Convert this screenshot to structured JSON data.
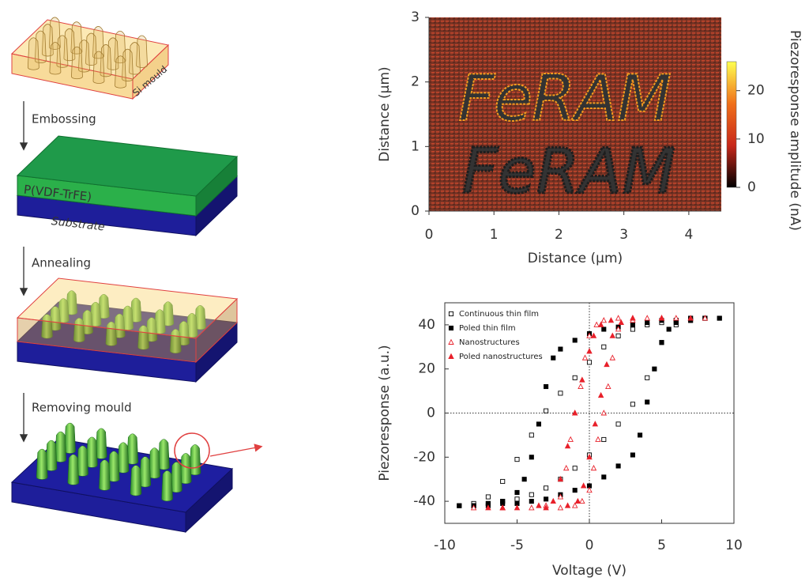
{
  "diagram": {
    "mould_label": "Si mould",
    "steps": [
      "Embossing",
      "Annealing",
      "Removing mould"
    ],
    "layers": [
      "P(VDF-TrFE)",
      "Substrate"
    ]
  },
  "chart_data": [
    {
      "type": "heatmap",
      "xlabel": "Distance (μm)",
      "ylabel": "Distance (μm)",
      "xlim": [
        0,
        4.5
      ],
      "xticks": [
        0,
        1,
        2,
        3,
        4
      ],
      "ylim": [
        0,
        3
      ],
      "yticks": [
        0,
        1,
        2,
        3
      ],
      "annotations": [
        {
          "text": "FeRAM",
          "color": "#f29a1e"
        },
        {
          "text": "FeRAM",
          "color": "#1e1e1e"
        }
      ],
      "colorbar": {
        "label": "Piezoresponse amplitude (nA)",
        "lim": [
          0,
          26
        ],
        "ticks": [
          0,
          10,
          20
        ],
        "colormap": [
          "#000000",
          "#c8281a",
          "#f0701a",
          "#ffff50"
        ]
      }
    },
    {
      "type": "scatter",
      "xlabel": "Voltage (V)",
      "ylabel": "Piezoresponse (a.u.)",
      "xlim": [
        -10,
        10
      ],
      "xticks": [
        -10,
        -5,
        0,
        5,
        10
      ],
      "ylim": [
        -50,
        50
      ],
      "yticks": [
        -40,
        -20,
        0,
        20,
        40
      ],
      "zero_lines": true,
      "legend": "upper left",
      "series": [
        {
          "name": "Continuous thin film",
          "color": "#000000",
          "marker": "open-square",
          "x": [
            -9,
            -8,
            -7,
            -6,
            -5,
            -4,
            -3,
            -2,
            -1,
            0,
            1,
            2,
            3,
            4,
            5,
            6,
            7,
            8,
            9,
            8,
            7,
            6,
            5,
            4,
            3,
            2,
            1,
            0,
            -1,
            -2,
            -3,
            -4,
            -5,
            -6,
            -7,
            -8
          ],
          "values": [
            -42,
            -42,
            -41,
            -40,
            -39,
            -37,
            -34,
            -30,
            -25,
            -19,
            -12,
            -5,
            4,
            16,
            32,
            40,
            42,
            43,
            43,
            43,
            43,
            42,
            41,
            40,
            38,
            35,
            30,
            23,
            16,
            9,
            1,
            -10,
            -21,
            -31,
            -38,
            -41
          ]
        },
        {
          "name": "Poled thin film",
          "color": "#000000",
          "marker": "filled-square",
          "x": [
            -9,
            -8,
            -7,
            -6,
            -5,
            -4,
            -3,
            -2,
            -1,
            0,
            1,
            2,
            3,
            3.5,
            4,
            4.5,
            5,
            5.5,
            6,
            7,
            8,
            9,
            8,
            7,
            6,
            5,
            4,
            3,
            2,
            1,
            0,
            -1,
            -2,
            -2.5,
            -3,
            -3.5,
            -4,
            -4.5,
            -5,
            -6,
            -7,
            -8
          ],
          "values": [
            -42,
            -42,
            -42,
            -41,
            -41,
            -40,
            -39,
            -37,
            -35,
            -33,
            -29,
            -24,
            -19,
            -10,
            5,
            20,
            32,
            38,
            41,
            42,
            43,
            43,
            43,
            43,
            42,
            42,
            41,
            40,
            39,
            38,
            36,
            33,
            29,
            25,
            12,
            -5,
            -20,
            -30,
            -36,
            -40,
            -41,
            -42
          ]
        },
        {
          "name": "Nanostructures",
          "color": "#e8202a",
          "marker": "open-triangle",
          "x": [
            -8,
            -6,
            -4,
            -2,
            -1,
            -0.5,
            0,
            0.3,
            0.6,
            1,
            1.3,
            1.6,
            2,
            3,
            5,
            8,
            6,
            4,
            2,
            1,
            0.5,
            0,
            -0.3,
            -0.6,
            -1,
            -1.3,
            -1.6,
            -2,
            -3,
            -6
          ],
          "values": [
            -43,
            -43,
            -43,
            -43,
            -42,
            -40,
            -35,
            -25,
            -12,
            0,
            12,
            25,
            38,
            42,
            43,
            43,
            43,
            43,
            43,
            42,
            40,
            35,
            25,
            12,
            0,
            -12,
            -25,
            -38,
            -42,
            -43
          ]
        },
        {
          "name": "Poled nanostructures",
          "color": "#e8202a",
          "marker": "filled-triangle",
          "x": [
            -7,
            -5,
            -3,
            -1.5,
            -0.8,
            -0.4,
            0,
            0.4,
            0.8,
            1.2,
            1.6,
            2.2,
            3,
            5,
            7,
            5,
            3,
            1.5,
            0.8,
            0.3,
            0,
            -0.5,
            -1,
            -1.5,
            -2,
            -2.5,
            -3.5,
            -6
          ],
          "values": [
            -43,
            -43,
            -43,
            -42,
            -40,
            -33,
            -20,
            -5,
            8,
            22,
            35,
            41,
            43,
            43,
            43,
            43,
            43,
            42,
            40,
            35,
            28,
            15,
            0,
            -15,
            -30,
            -40,
            -42,
            -43
          ]
        }
      ]
    }
  ]
}
